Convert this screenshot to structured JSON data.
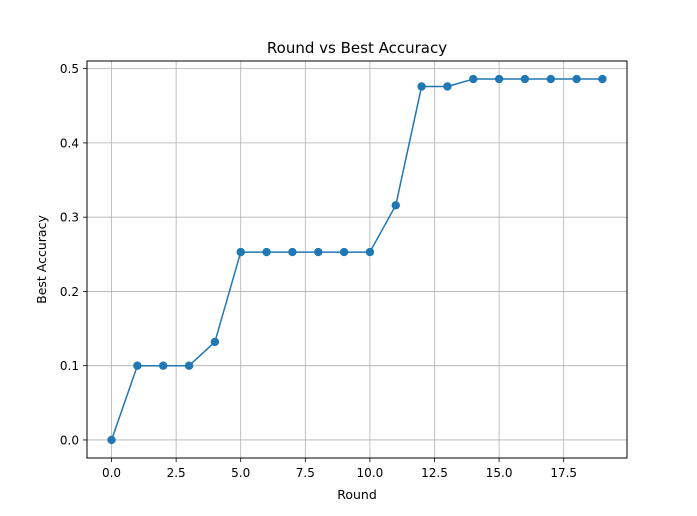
{
  "chart_data": {
    "type": "line",
    "title": "Round vs Best Accuracy",
    "xlabel": "Round",
    "ylabel": "Best Accuracy",
    "x": [
      0,
      1,
      2,
      3,
      4,
      5,
      6,
      7,
      8,
      9,
      10,
      11,
      12,
      13,
      14,
      15,
      16,
      17,
      18,
      19
    ],
    "series": [
      {
        "values": [
          0.0,
          0.1,
          0.1,
          0.1,
          0.132,
          0.253,
          0.253,
          0.253,
          0.253,
          0.253,
          0.253,
          0.316,
          0.476,
          0.476,
          0.486,
          0.486,
          0.486,
          0.486,
          0.486,
          0.486
        ],
        "color": "#1f77b4",
        "marker": "circle"
      }
    ],
    "xlim": [
      -0.95,
      19.95
    ],
    "ylim": [
      -0.0243,
      0.5103
    ],
    "xticks": [
      0.0,
      2.5,
      5.0,
      7.5,
      10.0,
      12.5,
      15.0,
      17.5
    ],
    "xtick_labels": [
      "0.0",
      "2.5",
      "5.0",
      "7.5",
      "10.0",
      "12.5",
      "15.0",
      "17.5"
    ],
    "yticks": [
      0.0,
      0.1,
      0.2,
      0.3,
      0.4,
      0.5
    ],
    "ytick_labels": [
      "0.0",
      "0.1",
      "0.2",
      "0.3",
      "0.4",
      "0.5"
    ],
    "grid": true,
    "legend": false
  }
}
